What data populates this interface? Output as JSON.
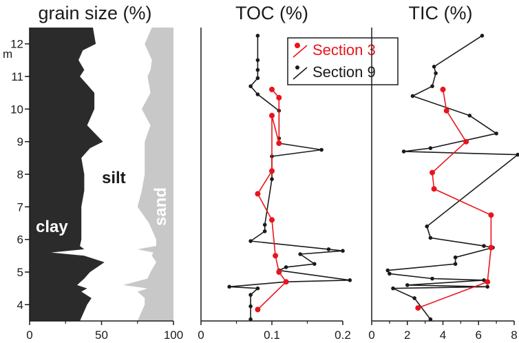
{
  "chart_data": [
    {
      "type": "area",
      "title": "grain size (%)",
      "xlabel": "",
      "ylabel": "m",
      "xlim": [
        0,
        100
      ],
      "ylim": [
        3.5,
        12.5
      ],
      "xticks": [
        "0",
        "50",
        "100"
      ],
      "yticks": [
        "4",
        "5",
        "6",
        "7",
        "8",
        "9",
        "10",
        "11",
        "12"
      ],
      "labels": {
        "clay": "clay",
        "silt": "silt",
        "sand": "sand"
      },
      "depth": [
        3.5,
        4.0,
        4.2,
        4.4,
        4.5,
        4.6,
        4.8,
        5.0,
        5.3,
        5.5,
        5.6,
        5.7,
        5.8,
        6.0,
        6.5,
        7.0,
        7.5,
        8.0,
        8.5,
        8.8,
        9.0,
        9.5,
        10.0,
        10.5,
        11.0,
        11.2,
        11.5,
        11.8,
        12.0,
        12.5
      ],
      "clay_pct": [
        35,
        40,
        43,
        36,
        40,
        33,
        38,
        42,
        52,
        38,
        15,
        38,
        35,
        36,
        36,
        36,
        38,
        38,
        36,
        42,
        51,
        40,
        45,
        45,
        35,
        38,
        34,
        37,
        46,
        44
      ],
      "clay_silt_pct": [
        75,
        80,
        80,
        75,
        82,
        65,
        82,
        84,
        88,
        85,
        86,
        75,
        88,
        88,
        83,
        75,
        78,
        80,
        80,
        80,
        80,
        84,
        78,
        84,
        82,
        84,
        85,
        82,
        80,
        85
      ]
    },
    {
      "type": "line",
      "title": "TOC (%)",
      "xlim": [
        0,
        0.2
      ],
      "ylim": [
        3.5,
        12.5
      ],
      "xticks": [
        "0",
        "0.1",
        "0.2"
      ],
      "legend": "top-right",
      "series": [
        {
          "name": "Section 3",
          "color": "#e8141c",
          "x": [
            0.08,
            0.12,
            0.11,
            0.105,
            0.1,
            0.08,
            0.1,
            0.1,
            0.11,
            0.11,
            0.1
          ],
          "y": [
            3.85,
            4.7,
            5.0,
            5.5,
            6.6,
            7.4,
            8.1,
            9.8,
            8.95,
            10.35,
            10.6
          ]
        },
        {
          "name": "Section 9",
          "color": "#1a1a1a",
          "x": [
            0.07,
            0.07,
            0.07,
            0.08,
            0.04,
            0.12,
            0.21,
            0.11,
            0.12,
            0.16,
            0.14,
            0.2,
            0.18,
            0.07,
            0.09,
            0.09,
            0.1,
            0.1,
            0.17,
            0.11,
            0.11,
            0.11,
            0.08,
            0.07,
            0.08,
            0.08,
            0.08,
            0.08
          ],
          "y": [
            3.55,
            3.95,
            4.3,
            4.5,
            4.55,
            4.7,
            4.75,
            5.05,
            5.15,
            5.25,
            5.55,
            5.65,
            5.7,
            5.95,
            6.25,
            6.45,
            7.85,
            8.55,
            8.75,
            8.95,
            9.1,
            9.95,
            10.45,
            10.7,
            10.95,
            11.2,
            11.5,
            12.25
          ]
        }
      ]
    },
    {
      "type": "line",
      "title": "TIC (%)",
      "xlim": [
        0,
        8
      ],
      "ylim": [
        3.5,
        12.5
      ],
      "xticks": [
        "0",
        "2",
        "4",
        "6",
        "8"
      ],
      "series": [
        {
          "name": "Section 3",
          "color": "#e8141c",
          "x": [
            2.6,
            6.5,
            6.7,
            6.7,
            3.5,
            3.4,
            5.3,
            4.2,
            4.0
          ],
          "y": [
            3.9,
            4.7,
            5.75,
            6.75,
            7.55,
            8.05,
            9.0,
            9.95,
            10.6
          ]
        },
        {
          "name": "Section 9",
          "color": "#1a1a1a",
          "x": [
            3.3,
            2.4,
            1.2,
            6.5,
            2.0,
            6.3,
            3.4,
            1.0,
            0.9,
            4.7,
            4.7,
            6.8,
            6.3,
            3.3,
            3.1,
            8.2,
            1.8,
            3.3,
            7.0,
            5.5,
            2.3,
            3.4,
            3.6,
            3.5,
            6.2
          ],
          "y": [
            3.55,
            4.2,
            4.5,
            4.55,
            4.6,
            4.75,
            4.8,
            4.95,
            5.05,
            5.25,
            5.45,
            5.75,
            5.8,
            6.05,
            6.4,
            8.6,
            8.7,
            8.8,
            9.25,
            9.8,
            10.4,
            10.7,
            11.1,
            11.3,
            12.25
          ]
        }
      ]
    }
  ]
}
